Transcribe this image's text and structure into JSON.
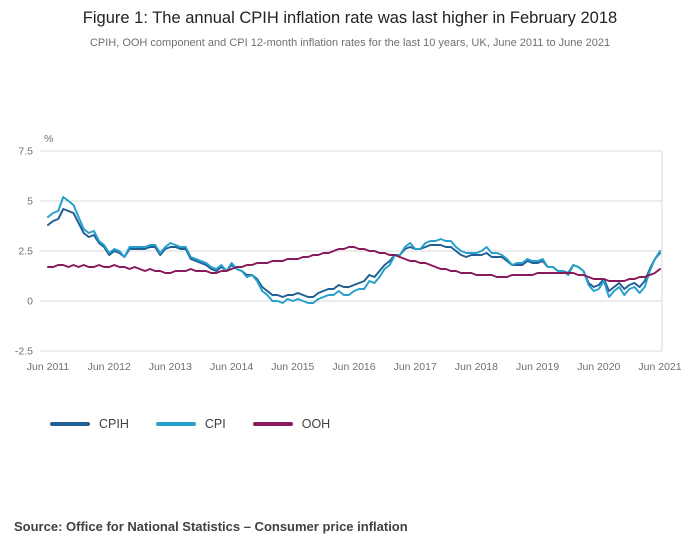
{
  "header": {
    "title": "Figure 1: The annual CPIH inflation rate was last higher in February 2018",
    "subtitle": "CPIH, OOH component and CPI 12-month inflation rates for the last 10 years, UK, June 2011 to June 2021"
  },
  "chart_data": {
    "type": "line",
    "unit_label": "%",
    "ylim": [
      -2.5,
      7.5
    ],
    "y_ticks": [
      7.5,
      5,
      2.5,
      0,
      -2.5
    ],
    "grid": "horizontal",
    "x_frequency": "monthly",
    "x_tick_labels": [
      "Jun 2011",
      "Jun 2012",
      "Jun 2013",
      "Jun 2014",
      "Jun 2015",
      "Jun 2016",
      "Jun 2017",
      "Jun 2018",
      "Jun 2019",
      "Jun 2020",
      "Jun 2021"
    ],
    "x_tick_indices": [
      0,
      12,
      24,
      36,
      48,
      60,
      72,
      84,
      96,
      108,
      120
    ],
    "legend_position": "bottom-left",
    "gridline_color": "#d9d9d9",
    "series": [
      {
        "name": "CPIH",
        "color": "#206095",
        "values": [
          3.8,
          4.0,
          4.1,
          4.6,
          4.5,
          4.4,
          3.9,
          3.4,
          3.2,
          3.3,
          2.9,
          2.7,
          2.3,
          2.5,
          2.4,
          2.2,
          2.6,
          2.6,
          2.6,
          2.6,
          2.7,
          2.7,
          2.3,
          2.6,
          2.7,
          2.7,
          2.6,
          2.6,
          2.1,
          2.0,
          1.9,
          1.8,
          1.6,
          1.5,
          1.7,
          1.5,
          1.8,
          1.6,
          1.5,
          1.3,
          1.3,
          1.1,
          0.7,
          0.5,
          0.3,
          0.3,
          0.2,
          0.3,
          0.3,
          0.4,
          0.3,
          0.2,
          0.2,
          0.4,
          0.5,
          0.6,
          0.6,
          0.8,
          0.7,
          0.7,
          0.8,
          0.9,
          1.0,
          1.3,
          1.2,
          1.5,
          1.8,
          2.0,
          2.3,
          2.3,
          2.6,
          2.7,
          2.6,
          2.6,
          2.7,
          2.8,
          2.8,
          2.8,
          2.7,
          2.7,
          2.5,
          2.3,
          2.2,
          2.3,
          2.3,
          2.3,
          2.4,
          2.2,
          2.2,
          2.2,
          2.0,
          1.8,
          1.8,
          1.8,
          2.0,
          1.9,
          1.9,
          2.0,
          1.7,
          1.7,
          1.5,
          1.5,
          1.4,
          1.8,
          1.7,
          1.5,
          0.9,
          0.7,
          0.8,
          1.1,
          0.5,
          0.7,
          0.9,
          0.6,
          0.8,
          0.9,
          0.7,
          1.0,
          1.6,
          2.1,
          2.4
        ]
      },
      {
        "name": "CPI",
        "color": "#27a0cc",
        "values": [
          4.2,
          4.4,
          4.5,
          5.2,
          5.0,
          4.8,
          4.2,
          3.6,
          3.4,
          3.5,
          3.0,
          2.8,
          2.4,
          2.6,
          2.5,
          2.2,
          2.7,
          2.7,
          2.7,
          2.7,
          2.8,
          2.8,
          2.4,
          2.7,
          2.9,
          2.8,
          2.7,
          2.7,
          2.2,
          2.1,
          2.0,
          1.9,
          1.7,
          1.6,
          1.8,
          1.5,
          1.9,
          1.6,
          1.5,
          1.2,
          1.3,
          1.0,
          0.5,
          0.3,
          0.0,
          0.0,
          -0.1,
          0.1,
          0.0,
          0.1,
          0.0,
          -0.1,
          -0.1,
          0.1,
          0.2,
          0.3,
          0.3,
          0.5,
          0.3,
          0.3,
          0.5,
          0.6,
          0.6,
          1.0,
          0.9,
          1.2,
          1.6,
          1.8,
          2.3,
          2.3,
          2.7,
          2.9,
          2.6,
          2.6,
          2.9,
          3.0,
          3.0,
          3.1,
          3.0,
          3.0,
          2.7,
          2.5,
          2.4,
          2.4,
          2.4,
          2.5,
          2.7,
          2.4,
          2.4,
          2.3,
          2.1,
          1.8,
          1.9,
          1.9,
          2.1,
          2.0,
          2.0,
          2.1,
          1.7,
          1.7,
          1.5,
          1.5,
          1.3,
          1.8,
          1.7,
          1.5,
          0.8,
          0.5,
          0.6,
          1.0,
          0.2,
          0.5,
          0.7,
          0.3,
          0.6,
          0.7,
          0.4,
          0.7,
          1.5,
          2.1,
          2.5
        ]
      },
      {
        "name": "OOH",
        "color": "#871a5b",
        "values": [
          1.7,
          1.7,
          1.8,
          1.8,
          1.7,
          1.8,
          1.7,
          1.8,
          1.7,
          1.7,
          1.8,
          1.7,
          1.7,
          1.8,
          1.7,
          1.7,
          1.6,
          1.7,
          1.6,
          1.5,
          1.6,
          1.5,
          1.5,
          1.4,
          1.4,
          1.5,
          1.5,
          1.5,
          1.6,
          1.5,
          1.5,
          1.5,
          1.4,
          1.4,
          1.5,
          1.5,
          1.6,
          1.7,
          1.7,
          1.8,
          1.8,
          1.9,
          1.9,
          1.9,
          2.0,
          2.0,
          2.0,
          2.1,
          2.1,
          2.1,
          2.2,
          2.2,
          2.3,
          2.3,
          2.4,
          2.4,
          2.5,
          2.6,
          2.6,
          2.7,
          2.7,
          2.6,
          2.6,
          2.5,
          2.5,
          2.4,
          2.4,
          2.3,
          2.3,
          2.2,
          2.1,
          2.0,
          2.0,
          1.9,
          1.9,
          1.8,
          1.7,
          1.6,
          1.6,
          1.5,
          1.5,
          1.4,
          1.4,
          1.4,
          1.3,
          1.3,
          1.3,
          1.3,
          1.2,
          1.2,
          1.2,
          1.3,
          1.3,
          1.3,
          1.3,
          1.3,
          1.4,
          1.4,
          1.4,
          1.4,
          1.4,
          1.4,
          1.4,
          1.4,
          1.3,
          1.3,
          1.2,
          1.1,
          1.1,
          1.1,
          1.0,
          1.0,
          1.0,
          1.0,
          1.1,
          1.1,
          1.2,
          1.2,
          1.3,
          1.4,
          1.6
        ]
      }
    ]
  },
  "footer": {
    "source": "Source: Office for National Statistics – Consumer price inflation"
  }
}
